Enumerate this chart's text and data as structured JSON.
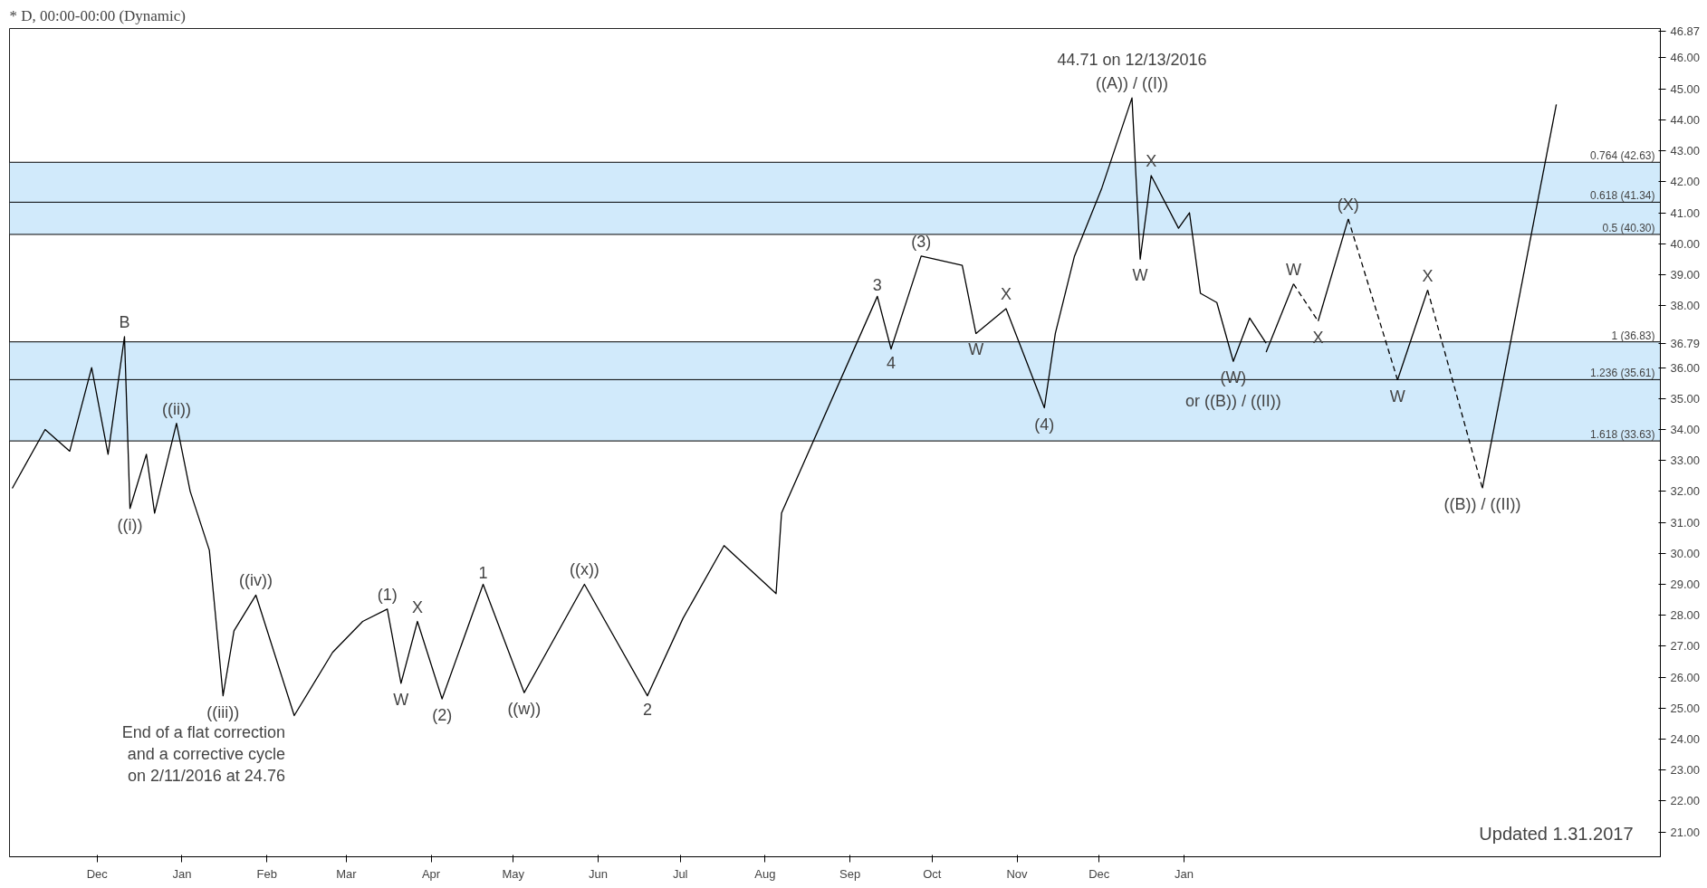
{
  "chart_data": {
    "type": "line",
    "title": "* D, 00:00-00:00 (Dynamic)",
    "xlim": [
      "2015-10-30",
      "2017-06-24"
    ],
    "ylim": [
      20.2,
      46.95
    ],
    "xticks": [
      {
        "value": "2015-12-01",
        "label": "Dec"
      },
      {
        "value": "2016-01-01",
        "label": "Jan"
      },
      {
        "value": "2016-02-01",
        "label": "Feb"
      },
      {
        "value": "2016-03-01",
        "label": "Mar"
      },
      {
        "value": "2016-04-01",
        "label": "Apr"
      },
      {
        "value": "2016-05-01",
        "label": "May"
      },
      {
        "value": "2016-06-01",
        "label": "Jun"
      },
      {
        "value": "2016-07-01",
        "label": "Jul"
      },
      {
        "value": "2016-08-01",
        "label": "Aug"
      },
      {
        "value": "2016-09-01",
        "label": "Sep"
      },
      {
        "value": "2016-10-01",
        "label": "Oct"
      },
      {
        "value": "2016-11-01",
        "label": "Nov"
      },
      {
        "value": "2016-12-01",
        "label": "Dec"
      },
      {
        "value": "2017-01-01",
        "label": "Jan"
      }
    ],
    "yticks": [
      {
        "value": 21,
        "label": "21.00"
      },
      {
        "value": 22,
        "label": "22.00"
      },
      {
        "value": 23,
        "label": "23.00"
      },
      {
        "value": 24,
        "label": "24.00"
      },
      {
        "value": 25,
        "label": "25.00"
      },
      {
        "value": 26,
        "label": "26.00"
      },
      {
        "value": 27,
        "label": "27.00"
      },
      {
        "value": 28,
        "label": "28.00"
      },
      {
        "value": 29,
        "label": "29.00"
      },
      {
        "value": 30,
        "label": "30.00"
      },
      {
        "value": 31,
        "label": "31.00"
      },
      {
        "value": 32,
        "label": "32.00"
      },
      {
        "value": 33,
        "label": "33.00"
      },
      {
        "value": 34,
        "label": "34.00"
      },
      {
        "value": 35,
        "label": "35.00"
      },
      {
        "value": 36,
        "label": "36.00"
      },
      {
        "value": 36.79,
        "label": "36.79"
      },
      {
        "value": 38,
        "label": "38.00"
      },
      {
        "value": 39,
        "label": "39.00"
      },
      {
        "value": 40,
        "label": "40.00"
      },
      {
        "value": 41,
        "label": "41.00"
      },
      {
        "value": 42,
        "label": "42.00"
      },
      {
        "value": 43,
        "label": "43.00"
      },
      {
        "value": 44,
        "label": "44.00"
      },
      {
        "value": 45,
        "label": "45.00"
      },
      {
        "value": 46,
        "label": "46.00"
      },
      {
        "value": 46.87,
        "label": "46.87"
      }
    ],
    "grid": false,
    "marker": "none",
    "series": [
      {
        "color": "#000000",
        "line_style": "solid",
        "x": [
          "2015-10-31",
          "2015-11-12",
          "2015-11-21",
          "2015-11-29",
          "2015-12-05",
          "2015-12-11",
          "2015-12-13",
          "2015-12-19",
          "2015-12-22",
          "2015-12-30",
          "2016-01-04",
          "2016-01-11",
          "2016-01-16",
          "2016-01-20",
          "2016-01-28",
          "2016-02-11",
          "2016-02-25",
          "2016-03-07",
          "2016-03-16",
          "2016-03-21",
          "2016-03-27",
          "2016-04-05",
          "2016-04-20",
          "2016-05-05",
          "2016-05-27",
          "2016-06-19",
          "2016-07-02",
          "2016-07-17",
          "2016-08-05",
          "2016-08-07",
          "2016-09-11",
          "2016-09-16",
          "2016-09-27",
          "2016-10-12",
          "2016-10-17",
          "2016-10-28",
          "2016-11-11",
          "2016-11-15",
          "2016-11-22",
          "2016-12-02",
          "2016-12-13",
          "2016-12-16",
          "2016-12-20",
          "2016-12-30",
          "2017-01-03",
          "2017-01-07",
          "2017-01-13",
          "2017-01-19",
          "2017-01-25",
          "2017-01-31"
        ],
        "values": [
          32.1,
          34.0,
          33.3,
          36.0,
          33.2,
          37.0,
          31.45,
          33.2,
          31.3,
          34.2,
          32.0,
          30.1,
          25.4,
          27.5,
          28.65,
          24.76,
          26.8,
          27.8,
          28.2,
          25.8,
          27.8,
          25.3,
          29.0,
          25.5,
          29.0,
          25.4,
          27.9,
          30.25,
          28.7,
          31.3,
          38.3,
          36.6,
          39.6,
          39.3,
          37.1,
          37.9,
          34.7,
          37.1,
          39.6,
          41.8,
          44.71,
          39.5,
          42.2,
          40.5,
          41.0,
          38.4,
          38.1,
          36.2,
          37.6,
          36.79
        ]
      },
      {
        "color": "#000000",
        "line_style": "solid",
        "x": [
          "2017-01-31",
          "2017-02-10"
        ],
        "values": [
          36.5,
          38.7
        ]
      },
      {
        "color": "#000000",
        "line_style": "dashed",
        "x": [
          "2017-02-10",
          "2017-02-19"
        ],
        "values": [
          38.7,
          37.5
        ]
      },
      {
        "color": "#000000",
        "line_style": "solid",
        "x": [
          "2017-02-19",
          "2017-03-02"
        ],
        "values": [
          37.5,
          40.8
        ]
      },
      {
        "color": "#000000",
        "line_style": "dashed",
        "x": [
          "2017-03-02",
          "2017-03-20"
        ],
        "values": [
          40.8,
          35.6
        ]
      },
      {
        "color": "#000000",
        "line_style": "solid",
        "x": [
          "2017-03-20",
          "2017-03-31"
        ],
        "values": [
          35.6,
          38.5
        ]
      },
      {
        "color": "#000000",
        "line_style": "dashed",
        "x": [
          "2017-03-31",
          "2017-04-20"
        ],
        "values": [
          38.5,
          32.1
        ]
      },
      {
        "color": "#000000",
        "line_style": "solid",
        "x": [
          "2017-04-20",
          "2017-05-17"
        ],
        "values": [
          32.1,
          44.5
        ]
      }
    ],
    "bands": [
      {
        "axis": "y",
        "from": 40.3,
        "to": 42.63,
        "color": "#b3dcf8"
      },
      {
        "axis": "y",
        "from": 33.63,
        "to": 36.83,
        "color": "#b3dcf8"
      }
    ],
    "ref_lines": [
      {
        "axis": "y",
        "value": 42.63,
        "label": "0.764 (42.63)"
      },
      {
        "axis": "y",
        "value": 41.34,
        "label": "0.618 (41.34)"
      },
      {
        "axis": "y",
        "value": 40.3,
        "label": "0.5 (40.30)"
      },
      {
        "axis": "y",
        "value": 36.83,
        "label": "1 (36.83)"
      },
      {
        "axis": "y",
        "value": 35.61,
        "label": "1.236 (35.61)"
      },
      {
        "axis": "y",
        "value": 33.63,
        "label": "1.618 (33.63)"
      }
    ],
    "annotations": [
      {
        "text": "44.71 on 12/13/2016",
        "x": "2016-12-13",
        "y": 44.71
      },
      {
        "text": "((A)) / ((I))",
        "x": "2016-12-13",
        "y": 44.71
      },
      {
        "text": "B",
        "x": "2015-12-11",
        "y": 37.0
      },
      {
        "text": "((i))",
        "x": "2015-12-13",
        "y": 31.45
      },
      {
        "text": "((ii))",
        "x": "2015-12-30",
        "y": 34.2
      },
      {
        "text": "((iii))",
        "x": "2016-01-16",
        "y": 25.4
      },
      {
        "text": "((iv))",
        "x": "2016-01-28",
        "y": 28.65
      },
      {
        "text": "(1)",
        "x": "2016-03-16",
        "y": 28.2
      },
      {
        "text": "W",
        "x": "2016-03-21",
        "y": 25.8
      },
      {
        "text": "X",
        "x": "2016-03-27",
        "y": 27.8
      },
      {
        "text": "(2)",
        "x": "2016-04-05",
        "y": 25.3
      },
      {
        "text": "1",
        "x": "2016-04-20",
        "y": 29.0
      },
      {
        "text": "((w))",
        "x": "2016-05-05",
        "y": 25.5
      },
      {
        "text": "((x))",
        "x": "2016-05-27",
        "y": 29.0
      },
      {
        "text": "2",
        "x": "2016-06-19",
        "y": 25.4
      },
      {
        "text": "3",
        "x": "2016-09-11",
        "y": 38.3
      },
      {
        "text": "4",
        "x": "2016-09-16",
        "y": 36.6
      },
      {
        "text": "(3)",
        "x": "2016-09-27",
        "y": 39.6
      },
      {
        "text": "W",
        "x": "2016-10-17",
        "y": 37.1
      },
      {
        "text": "X",
        "x": "2016-10-28",
        "y": 37.9
      },
      {
        "text": "(4)",
        "x": "2016-11-11",
        "y": 34.7
      },
      {
        "text": "W",
        "x": "2016-12-16",
        "y": 39.5
      },
      {
        "text": "X",
        "x": "2016-12-20",
        "y": 42.2
      },
      {
        "text": "(W)",
        "x": "2017-01-19",
        "y": 36.2
      },
      {
        "text": "or ((B)) / ((II))",
        "x": "2017-01-19",
        "y": 36.2
      },
      {
        "text": "W",
        "x": "2017-02-10",
        "y": 38.7
      },
      {
        "text": "X",
        "x": "2017-02-19",
        "y": 37.5
      },
      {
        "text": "(X)",
        "x": "2017-03-02",
        "y": 40.8
      },
      {
        "text": "W",
        "x": "2017-03-20",
        "y": 35.6
      },
      {
        "text": "X",
        "x": "2017-03-31",
        "y": 38.5
      },
      {
        "text": "((B)) / ((II))",
        "x": "2017-04-20",
        "y": 32.1
      },
      {
        "text": "End of a flat correction\nand a corrective cycle\non 2/11/2016 at 24.76",
        "x": "2016-02-11",
        "y": 24.76
      },
      "Updated 1.31.2017"
    ]
  }
}
